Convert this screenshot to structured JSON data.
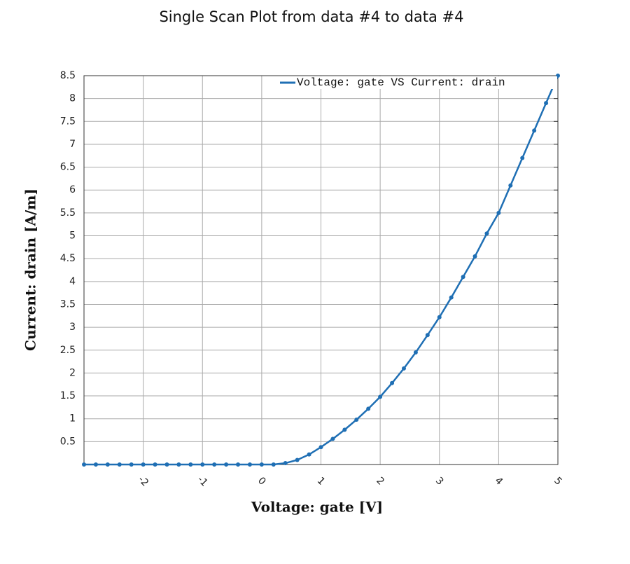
{
  "chart_data": {
    "type": "line",
    "title": "Single Scan Plot from data #4 to data #4",
    "x_label": "Voltage: gate [V]",
    "y_label": "Current: drain [A/m]",
    "x": [
      -3,
      -2.8,
      -2.6,
      -2.4,
      -2.2,
      -2,
      -1.8,
      -1.6,
      -1.4,
      -1.2,
      -1,
      -0.8,
      -0.6,
      -0.4,
      -0.2,
      0,
      0.2,
      0.4,
      0.6,
      0.8,
      1,
      1.2,
      1.4,
      1.6,
      1.8,
      2,
      2.2,
      2.4,
      2.6,
      2.8,
      3,
      3.2,
      3.4,
      3.6,
      3.8,
      4,
      4.2,
      4.4,
      4.6,
      4.8,
      5
    ],
    "series": [
      {
        "name": "Voltage: gate VS Current: drain",
        "color": "#1f6fb4",
        "values": [
          0,
          0,
          0,
          0,
          0,
          0,
          0,
          0,
          0,
          0,
          0,
          0,
          0,
          0,
          0,
          0,
          0,
          0.03,
          0.1,
          0.22,
          0.38,
          0.56,
          0.76,
          0.98,
          1.22,
          1.48,
          1.78,
          2.1,
          2.45,
          2.83,
          3.22,
          3.65,
          4.1,
          4.55,
          5.05,
          5.5,
          6.1,
          6.7,
          7.3,
          7.9,
          8.5
        ]
      }
    ],
    "xlim": [
      -3,
      5
    ],
    "ylim": [
      0,
      8.5
    ],
    "xticks": [
      -2,
      -1,
      0,
      1,
      2,
      3,
      4,
      5
    ],
    "yticks": [
      0.5,
      1,
      1.5,
      2,
      2.5,
      3,
      3.5,
      4,
      4.5,
      5,
      5.5,
      6,
      6.5,
      7,
      7.5,
      8,
      8.5
    ],
    "grid": true,
    "legend": "upper right"
  }
}
